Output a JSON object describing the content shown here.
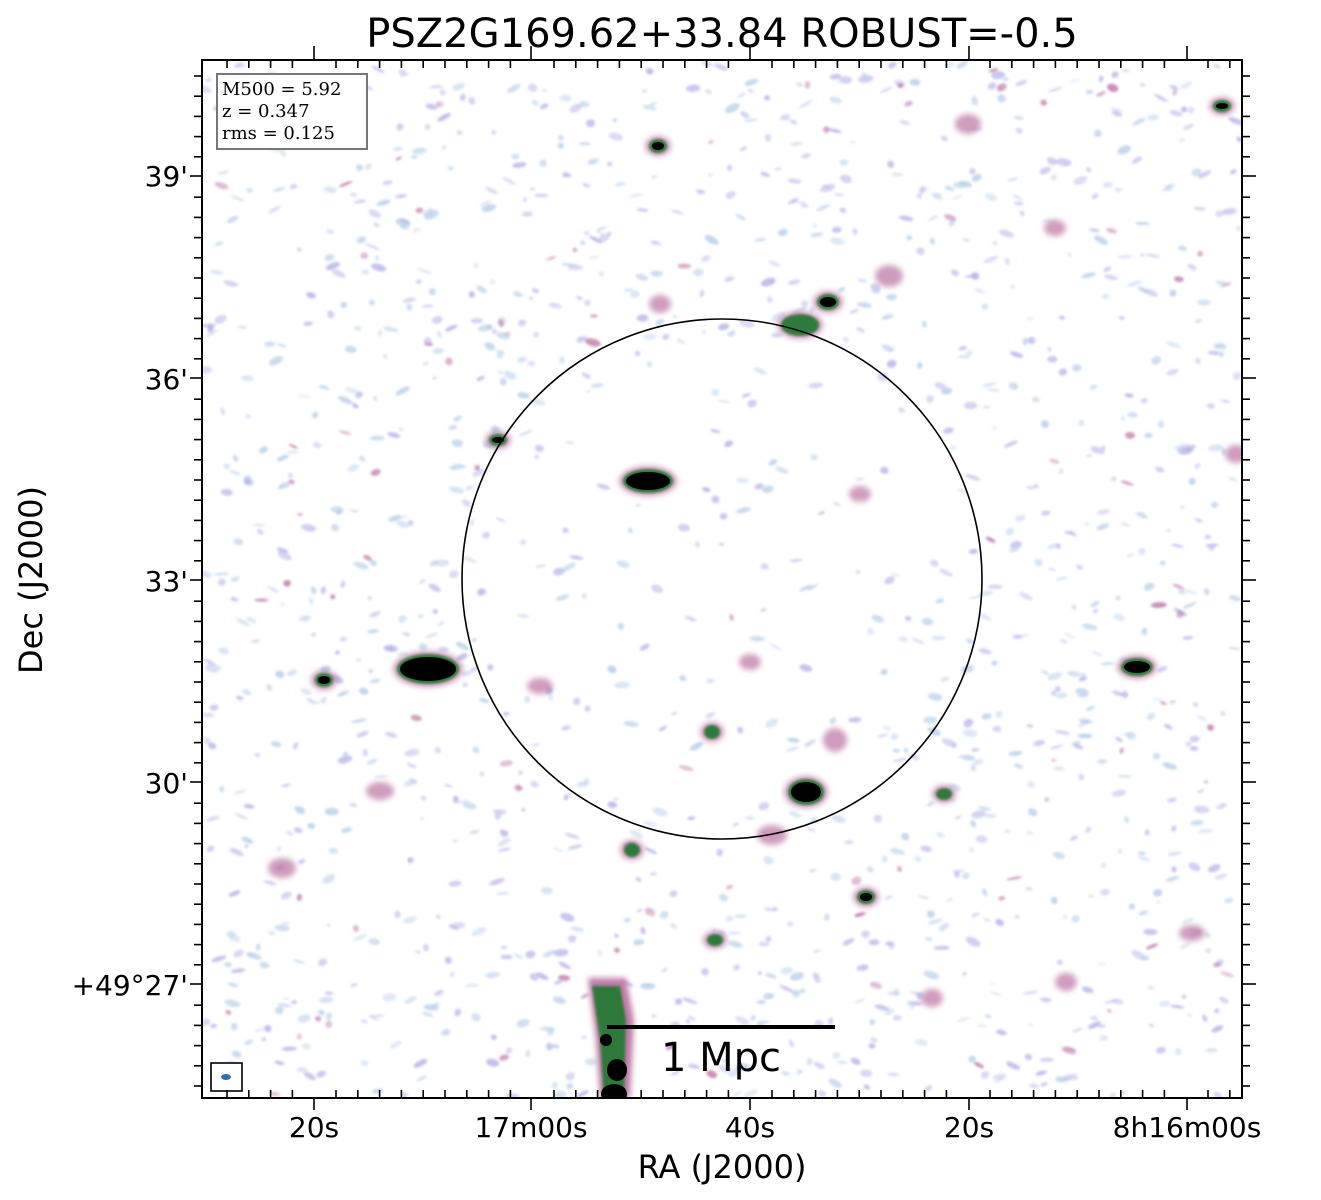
{
  "title": "PSZ2G169.62+33.84 ROBUST=-0.5",
  "x_axis_label": "RA (J2000)",
  "y_axis_label": "Dec (J2000)",
  "x_tick_labels": [
    "20s",
    "17m00s",
    "40s",
    "20s",
    "8h16m00s"
  ],
  "y_tick_labels": [
    "39'",
    "36'",
    "33'",
    "30'",
    "+49°27'"
  ],
  "info_box": {
    "m500": "M500 = 5.92",
    "z": "z = 0.347",
    "rms": "rms = 0.125"
  },
  "scale_bar_label": "1 Mpc",
  "colors": {
    "faint_emission": "#bcd2ea",
    "faint_emission_alt": "#b9b5ea",
    "mid_emission": "#c07aa8",
    "bright_emission": "#2f7a3a",
    "core": "#000000",
    "beam": "#2e6fb0"
  }
}
